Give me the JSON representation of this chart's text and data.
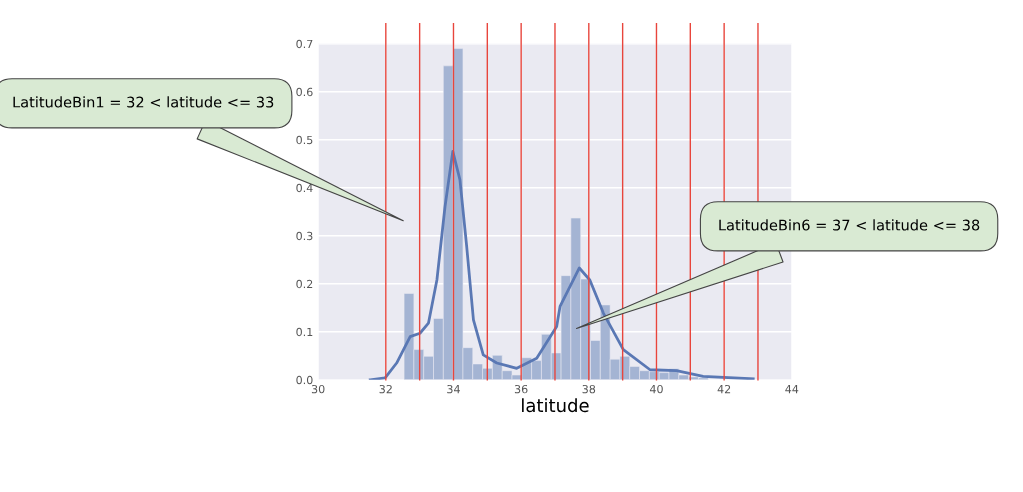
{
  "chart_data": {
    "type": "histogram",
    "xlabel": "latitude",
    "series": [
      {
        "color": "#a4b4d3",
        "bins": [
          32.54,
          32.83,
          33.12,
          33.41,
          33.7,
          33.99,
          34.28,
          34.57,
          34.86,
          35.15,
          35.44,
          35.73,
          36.02,
          36.31,
          36.6,
          36.89,
          37.18,
          37.47,
          37.76,
          38.05,
          38.34,
          38.63,
          38.92,
          39.21,
          39.5,
          39.79,
          40.08,
          40.37,
          40.66,
          40.95,
          41.24,
          41.53,
          41.82
        ],
        "values": [
          0.18,
          0.063,
          0.049,
          0.128,
          0.654,
          0.69,
          0.067,
          0.033,
          0.024,
          0.051,
          0.019,
          0.01,
          0.046,
          0.04,
          0.095,
          0.056,
          0.217,
          0.337,
          0.21,
          0.082,
          0.156,
          0.043,
          0.049,
          0.028,
          0.019,
          0.017,
          0.015,
          0.023,
          0.01,
          0.006,
          0.004,
          null
        ]
      },
      {
        "type": "line",
        "color": "#5a78b4",
        "x": [
          31.54,
          31.98,
          32.32,
          32.72,
          33.01,
          33.26,
          33.51,
          33.75,
          33.98,
          34.19,
          34.39,
          34.59,
          34.88,
          35.28,
          35.87,
          36.46,
          37.05,
          37.15,
          37.72,
          38.03,
          38.43,
          39.02,
          39.81,
          40.59,
          41.38,
          42.86
        ],
        "values": [
          0.0,
          0.004,
          0.035,
          0.09,
          0.097,
          0.118,
          0.208,
          0.361,
          0.476,
          0.417,
          0.278,
          0.125,
          0.052,
          0.035,
          0.024,
          0.045,
          0.111,
          0.153,
          0.233,
          0.208,
          0.139,
          0.063,
          0.021,
          0.019,
          0.007,
          0.002
        ]
      }
    ],
    "xlim": [
      30,
      44
    ],
    "xticks": [
      30,
      32,
      34,
      36,
      38,
      40,
      42,
      44
    ],
    "ylim": [
      0,
      0.7
    ],
    "yticks": [
      {
        "value": 0,
        "label": "0.0"
      },
      0.1,
      0.2,
      0.3,
      0.4,
      0.5,
      0.6,
      0.7
    ],
    "tick_labels": "xy",
    "grid": true,
    "ref_lines": [
      {
        "axis": "x",
        "value": 32,
        "color": "#e8453c"
      },
      {
        "axis": "x",
        "value": 33,
        "color": "#e8453c"
      },
      {
        "axis": "x",
        "value": 34,
        "color": "#e8453c"
      },
      {
        "axis": "x",
        "value": 35,
        "color": "#e8453c"
      },
      {
        "axis": "x",
        "value": 36,
        "color": "#e8453c"
      },
      {
        "axis": "x",
        "value": 37,
        "color": "#e8453c"
      },
      {
        "axis": "x",
        "value": 38,
        "color": "#e8453c"
      },
      {
        "axis": "x",
        "value": 39,
        "color": "#e8453c"
      },
      {
        "axis": "x",
        "value": 40,
        "color": "#e8453c"
      },
      {
        "axis": "x",
        "value": 41,
        "color": "#e8453c"
      },
      {
        "axis": "x",
        "value": 42,
        "color": "#e8453c"
      },
      {
        "axis": "x",
        "value": 43,
        "color": "#e8453c"
      }
    ],
    "annotations": [
      "LatitudeBin1 = 32 < latitude <= 33",
      "LatitudeBin6 = 37 < latitude <= 38"
    ]
  }
}
